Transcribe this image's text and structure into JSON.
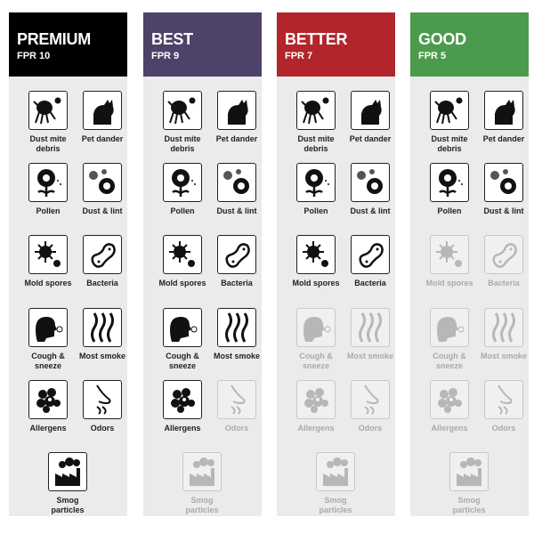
{
  "tiers": [
    {
      "name": "PREMIUM",
      "fpr": "FPR 10",
      "color": "#000000",
      "enabled": [
        true,
        true,
        true,
        true,
        true,
        true,
        true,
        true,
        true,
        true,
        true
      ]
    },
    {
      "name": "BEST",
      "fpr": "FPR 9",
      "color": "#4e4268",
      "enabled": [
        true,
        true,
        true,
        true,
        true,
        true,
        true,
        true,
        true,
        false,
        false
      ]
    },
    {
      "name": "BETTER",
      "fpr": "FPR 7",
      "color": "#b1252b",
      "enabled": [
        true,
        true,
        true,
        true,
        true,
        true,
        false,
        false,
        false,
        false,
        false
      ]
    },
    {
      "name": "GOOD",
      "fpr": "FPR 5",
      "color": "#4c9a4c",
      "enabled": [
        true,
        true,
        true,
        true,
        false,
        false,
        false,
        false,
        false,
        false,
        false
      ]
    }
  ],
  "items": [
    {
      "label": "Dust mite debris",
      "icon": "dust-mite-icon"
    },
    {
      "label": "Pet dander",
      "icon": "cat-icon"
    },
    {
      "label": "Pollen",
      "icon": "flower-icon"
    },
    {
      "label": "Dust & lint",
      "icon": "dust-particles-icon"
    },
    {
      "label": "Mold spores",
      "icon": "mold-spore-icon"
    },
    {
      "label": "Bacteria",
      "icon": "bacteria-icon"
    },
    {
      "label": "Cough & sneeze",
      "icon": "sneeze-icon"
    },
    {
      "label": "Most smoke",
      "icon": "smoke-icon"
    },
    {
      "label": "Allergens",
      "icon": "allergen-icon"
    },
    {
      "label": "Odors",
      "icon": "nose-icon"
    },
    {
      "label": "Smog particles",
      "icon": "factory-icon"
    }
  ]
}
